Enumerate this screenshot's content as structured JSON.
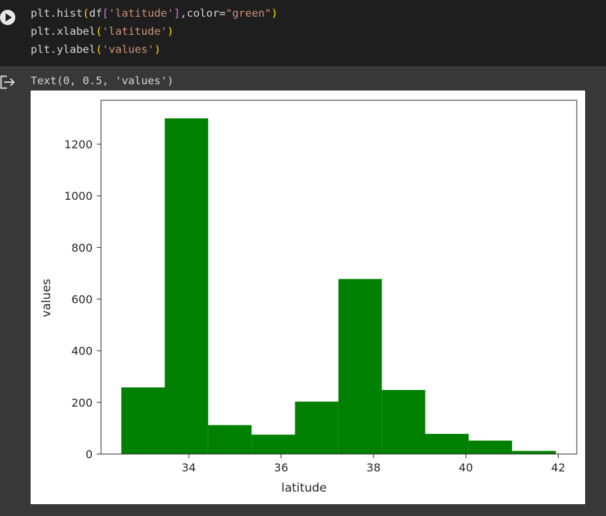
{
  "code_cell": {
    "lines": [
      [
        {
          "t": "plt.hist",
          "c": "tok-fn"
        },
        {
          "t": "(",
          "c": "tok-paren"
        },
        {
          "t": "df",
          "c": "tok-plain"
        },
        {
          "t": "[",
          "c": "tok-bracket"
        },
        {
          "t": "'latitude'",
          "c": "tok-str"
        },
        {
          "t": "]",
          "c": "tok-bracket"
        },
        {
          "t": ",color=",
          "c": "tok-plain"
        },
        {
          "t": "\"green\"",
          "c": "tok-str"
        },
        {
          "t": ")",
          "c": "tok-paren"
        }
      ],
      [
        {
          "t": "plt.xlabel",
          "c": "tok-fn"
        },
        {
          "t": "(",
          "c": "tok-paren"
        },
        {
          "t": "'latitude'",
          "c": "tok-str"
        },
        {
          "t": ")",
          "c": "tok-paren"
        }
      ],
      [
        {
          "t": "plt.ylabel",
          "c": "tok-fn"
        },
        {
          "t": "(",
          "c": "tok-paren"
        },
        {
          "t": "'values'",
          "c": "tok-str"
        },
        {
          "t": ")",
          "c": "tok-paren"
        }
      ]
    ]
  },
  "output": {
    "text": "Text(0, 0.5, 'values')"
  },
  "colors": {
    "bar": "#008000",
    "code_bg": "#1e1e1e",
    "output_bg": "#383838"
  },
  "chart_data": {
    "type": "bar",
    "xlabel": "latitude",
    "ylabel": "values",
    "xlim": [
      32.1,
      42.4
    ],
    "ylim": [
      0,
      1370
    ],
    "xticks": [
      34,
      36,
      38,
      40,
      42
    ],
    "yticks": [
      0,
      200,
      400,
      600,
      800,
      1000,
      1200
    ],
    "bin_edges": [
      32.54,
      33.48,
      34.42,
      35.36,
      36.3,
      37.24,
      38.18,
      39.12,
      40.06,
      41.0,
      41.95
    ],
    "values": [
      258,
      1300,
      112,
      75,
      203,
      678,
      248,
      78,
      52,
      12
    ],
    "color": "#008000",
    "grid": false
  }
}
